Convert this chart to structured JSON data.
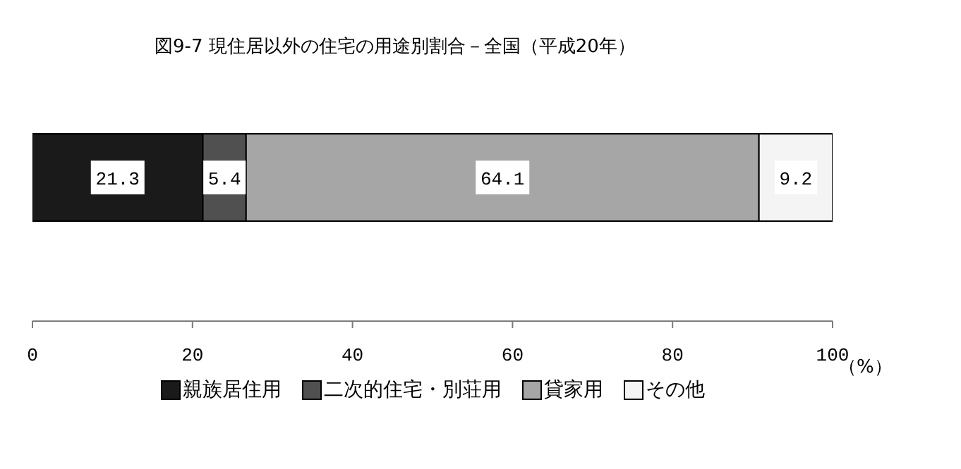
{
  "chart_data": {
    "type": "bar",
    "orientation": "horizontal",
    "stacked": true,
    "title": "図9-7 現住居以外の住宅の用途別割合－全国（平成20年）",
    "xlabel": "（%）",
    "categories": [
      null
    ],
    "series": [
      {
        "name": "親族居住用",
        "color": "#1a1a1a",
        "values": [
          21.3
        ]
      },
      {
        "name": "二次的住宅・別荘用",
        "color": "#505050",
        "values": [
          5.4
        ]
      },
      {
        "name": "貸家用",
        "color": "#a6a6a6",
        "values": [
          64.1
        ]
      },
      {
        "name": "その他",
        "color": "#f4f4f4",
        "values": [
          9.2
        ]
      }
    ],
    "xlim": [
      0,
      100
    ],
    "xticks": [
      0,
      20,
      40,
      60,
      80,
      100
    ],
    "data_labels": true,
    "legend": "bottom",
    "grid": false
  }
}
